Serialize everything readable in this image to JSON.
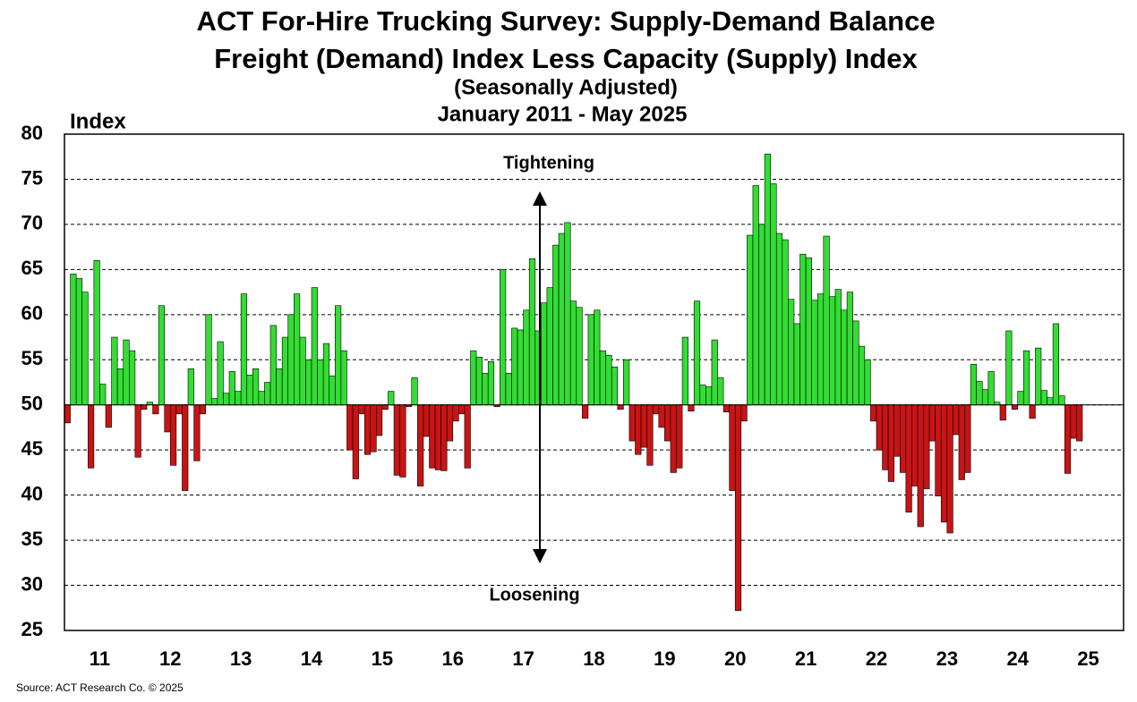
{
  "chart_data": {
    "type": "bar",
    "title": "ACT For-Hire Trucking Survey: Supply-Demand Balance",
    "subtitle": [
      "Freight (Demand) Index Less Capacity (Supply) Index",
      "(Seasonally Adjusted)",
      "January 2011 - May 2025"
    ],
    "y_label": "Index",
    "annotations": [
      "Tightening",
      "Loosening"
    ],
    "source": "Source: ACT Research Co. © 2025",
    "baseline": 50,
    "colors": {
      "above": "#33dd33",
      "below": "#c81414"
    },
    "grid": true,
    "xlim": [
      -0.5,
      179.5
    ],
    "xticks": [
      {
        "value": 5.5,
        "label": "11"
      },
      {
        "value": 17.5,
        "label": "12"
      },
      {
        "value": 29.5,
        "label": "13"
      },
      {
        "value": 41.5,
        "label": "14"
      },
      {
        "value": 53.5,
        "label": "15"
      },
      {
        "value": 65.5,
        "label": "16"
      },
      {
        "value": 77.5,
        "label": "17"
      },
      {
        "value": 89.5,
        "label": "18"
      },
      {
        "value": 101.5,
        "label": "19"
      },
      {
        "value": 113.5,
        "label": "20"
      },
      {
        "value": 125.5,
        "label": "21"
      },
      {
        "value": 137.5,
        "label": "22"
      },
      {
        "value": 149.5,
        "label": "23"
      },
      {
        "value": 161.5,
        "label": "24"
      },
      {
        "value": 173.5,
        "label": "25"
      }
    ],
    "ylim": [
      25,
      80
    ],
    "yticks": [
      25,
      30,
      35,
      40,
      45,
      50,
      55,
      60,
      65,
      70,
      75,
      80
    ],
    "x": [
      0,
      1,
      2,
      3,
      4,
      5,
      6,
      7,
      8,
      9,
      10,
      11,
      12,
      13,
      14,
      15,
      16,
      17,
      18,
      19,
      20,
      21,
      22,
      23,
      24,
      25,
      26,
      27,
      28,
      29,
      30,
      31,
      32,
      33,
      34,
      35,
      36,
      37,
      38,
      39,
      40,
      41,
      42,
      43,
      44,
      45,
      46,
      47,
      48,
      49,
      50,
      51,
      52,
      53,
      54,
      55,
      56,
      57,
      58,
      59,
      60,
      61,
      62,
      63,
      64,
      65,
      66,
      67,
      68,
      69,
      70,
      71,
      72,
      73,
      74,
      75,
      76,
      77,
      78,
      79,
      80,
      81,
      82,
      83,
      84,
      85,
      86,
      87,
      88,
      89,
      90,
      91,
      92,
      93,
      94,
      95,
      96,
      97,
      98,
      99,
      100,
      101,
      102,
      103,
      104,
      105,
      106,
      107,
      108,
      109,
      110,
      111,
      112,
      113,
      114,
      115,
      116,
      117,
      118,
      119,
      120,
      121,
      122,
      123,
      124,
      125,
      126,
      127,
      128,
      129,
      130,
      131,
      132,
      133,
      134,
      135,
      136,
      137,
      138,
      139,
      140,
      141,
      142,
      143,
      144,
      145,
      146,
      147,
      148,
      149,
      150,
      151,
      152,
      153,
      154,
      155,
      156,
      157,
      158,
      159,
      160,
      161,
      162,
      163,
      164,
      165,
      166,
      167,
      168,
      169,
      170,
      171,
      172
    ],
    "values": [
      48,
      64.5,
      64,
      62.5,
      43,
      66,
      52.3,
      47.5,
      57.5,
      54,
      57.2,
      56,
      44.2,
      49.5,
      50.3,
      49,
      61,
      47,
      43.3,
      49,
      40.5,
      54,
      43.8,
      49,
      60,
      50.7,
      57,
      51.3,
      53.7,
      51.5,
      62.3,
      53.3,
      54,
      51.5,
      52.5,
      58.8,
      54,
      57.5,
      60,
      62.3,
      57.5,
      55,
      63,
      55,
      56.8,
      53.2,
      61,
      56,
      45,
      41.8,
      49,
      44.5,
      44.8,
      46.6,
      49.5,
      51.5,
      42.2,
      42,
      49.8,
      53,
      41,
      46.5,
      43,
      42.8,
      42.7,
      46,
      48.2,
      49,
      43,
      56,
      55.3,
      53.5,
      54.8,
      49.8,
      65,
      53.5,
      58.5,
      58.3,
      60.5,
      66.2,
      58.2,
      61.3,
      63,
      67.7,
      69,
      70.2,
      61.5,
      60.8,
      48.5,
      60,
      60.5,
      56,
      55.5,
      54.2,
      49.5,
      55,
      46,
      44.5,
      45.3,
      43.3,
      49,
      47.5,
      46,
      42.5,
      43,
      57.5,
      49.3,
      61.5,
      52.2,
      52,
      57.2,
      53,
      49.2,
      40.5,
      27.2,
      48.2,
      68.8,
      74.3,
      70,
      77.8,
      74.5,
      69,
      68.3,
      61.7,
      59,
      66.7,
      66.3,
      61.6,
      62.3,
      68.7,
      62,
      62.8,
      60.5,
      62.5,
      59.3,
      56.5,
      55,
      48.2,
      45,
      42.8,
      41.5,
      44.3,
      42.5,
      38.1,
      41,
      36.5,
      40.7,
      46,
      39.9,
      37,
      35.8,
      46.7,
      41.7,
      42.5,
      54.5,
      52.6,
      51.7,
      53.7,
      50.3,
      48.3,
      58.2,
      49.5,
      51.5,
      56,
      48.5,
      56.3,
      51.6,
      50.8,
      59,
      51,
      42.4,
      46.3,
      46
    ]
  }
}
